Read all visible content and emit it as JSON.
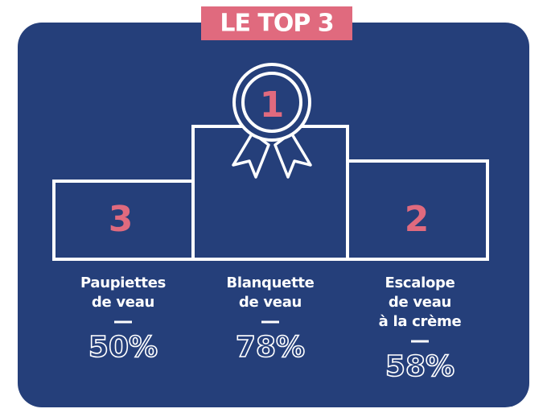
{
  "title": "LE TOP 3",
  "podium": [
    {
      "rank": "3",
      "name": [
        "Paupiettes",
        "de veau"
      ],
      "value": "50%"
    },
    {
      "rank": "1",
      "name": [
        "Blanquette",
        "de veau"
      ],
      "value": "78%"
    },
    {
      "rank": "2",
      "name": [
        "Escalope",
        "de veau",
        "à la crème"
      ],
      "value": "58%"
    }
  ]
}
